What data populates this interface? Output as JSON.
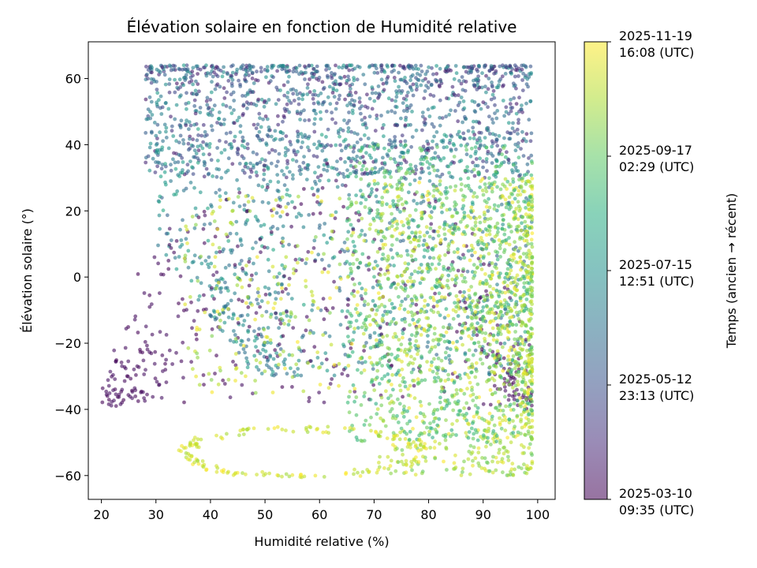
{
  "chart_data": {
    "type": "scatter",
    "title": "Élévation solaire en fonction de Humidité relative",
    "xlabel": "Humidité relative (%)",
    "ylabel": "Élévation solaire (°)",
    "xlim": [
      17.6,
      103.2
    ],
    "ylim": [
      -67.2,
      71.1
    ],
    "xticks": [
      20,
      30,
      40,
      50,
      60,
      70,
      80,
      90,
      100
    ],
    "yticks": [
      -60,
      -40,
      -20,
      0,
      20,
      40,
      60
    ],
    "colormap": "viridis",
    "colorbar": {
      "label": "Temps (ancien → récent)",
      "ticks": [
        {
          "line1": "2025-11-19",
          "line2": "16:08 (UTC)",
          "value": 1.0
        },
        {
          "line1": "2025-09-17",
          "line2": "02:29 (UTC)",
          "value": 0.75
        },
        {
          "line1": "2025-07-15",
          "line2": "12:51 (UTC)",
          "value": 0.5
        },
        {
          "line1": "2025-05-12",
          "line2": "23:13 (UTC)",
          "value": 0.25
        },
        {
          "line1": "2025-03-10",
          "line2": "09:35 (UTC)",
          "value": 0.0
        }
      ]
    },
    "grid": false,
    "point_color_note": "color encodes time from 2025-03-10 (dark purple) to 2025-11-19 (yellow)",
    "clusters": [
      {
        "name": "upper-band",
        "t": [
          0.05,
          0.55
        ],
        "x": [
          28,
          99
        ],
        "y": [
          30,
          64
        ]
      },
      {
        "name": "mid-teal",
        "t": [
          0.3,
          0.6
        ],
        "x": [
          28,
          99
        ],
        "y": [
          -30,
          45
        ]
      },
      {
        "name": "early-purple-arc",
        "t": [
          0.0,
          0.05
        ],
        "x": [
          21,
          99
        ],
        "y": [
          -42,
          40
        ]
      },
      {
        "name": "late-yellow-right",
        "t": [
          0.75,
          1.0
        ],
        "x": [
          70,
          99
        ],
        "y": [
          -60,
          30
        ]
      },
      {
        "name": "green-right",
        "t": [
          0.6,
          0.8
        ],
        "x": [
          65,
          99
        ],
        "y": [
          -50,
          40
        ]
      },
      {
        "name": "late-yellow-low-loop",
        "t": [
          0.85,
          1.0
        ],
        "x": [
          34,
          80
        ],
        "y": [
          -61,
          -46
        ]
      },
      {
        "name": "scattered-yellow-mid",
        "t": [
          0.8,
          1.0
        ],
        "x": [
          35,
          80
        ],
        "y": [
          -35,
          25
        ]
      }
    ]
  }
}
